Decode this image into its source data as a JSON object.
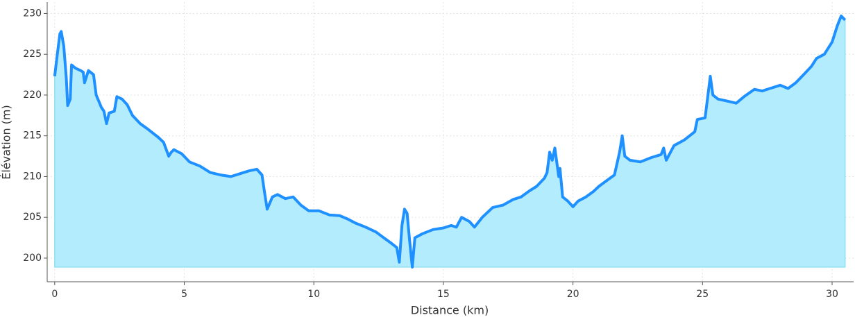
{
  "chart_data": {
    "type": "area",
    "xlabel": "Distance (km)",
    "ylabel": "Élévation (m)",
    "line_color": "#1e90ff",
    "fill_color": "#b3ecfc",
    "grid": true,
    "xlim": [
      -0.29,
      30.83
    ],
    "ylim": [
      197.1,
      231.4
    ],
    "xticks": [
      0,
      5,
      10,
      15,
      20,
      25,
      30
    ],
    "yticks": [
      200,
      205,
      210,
      215,
      220,
      225,
      230
    ],
    "x": [
      0,
      0.1,
      0.2,
      0.25,
      0.35,
      0.45,
      0.5,
      0.6,
      0.65,
      0.8,
      1.0,
      1.1,
      1.15,
      1.3,
      1.5,
      1.6,
      1.8,
      1.9,
      2.0,
      2.1,
      2.3,
      2.4,
      2.6,
      2.8,
      3.0,
      3.3,
      3.6,
      4.0,
      4.2,
      4.4,
      4.5,
      4.6,
      4.9,
      5.2,
      5.6,
      6.0,
      6.4,
      6.8,
      7.2,
      7.5,
      7.8,
      8.0,
      8.1,
      8.2,
      8.4,
      8.6,
      8.9,
      9.2,
      9.5,
      9.8,
      10.2,
      10.6,
      11.0,
      11.3,
      11.6,
      12.0,
      12.4,
      12.7,
      13.0,
      13.2,
      13.3,
      13.4,
      13.5,
      13.6,
      13.7,
      13.8,
      13.9,
      14.2,
      14.6,
      15.0,
      15.3,
      15.5,
      15.7,
      16.0,
      16.2,
      16.5,
      16.9,
      17.3,
      17.7,
      18.0,
      18.3,
      18.6,
      18.9,
      19.0,
      19.1,
      19.2,
      19.3,
      19.45,
      19.5,
      19.6,
      19.8,
      20.0,
      20.2,
      20.5,
      20.8,
      21.0,
      21.3,
      21.6,
      21.8,
      21.9,
      22.0,
      22.2,
      22.6,
      23.0,
      23.4,
      23.5,
      23.6,
      23.9,
      24.3,
      24.7,
      24.8,
      25.1,
      25.3,
      25.4,
      25.6,
      25.9,
      26.3,
      26.6,
      27.0,
      27.3,
      27.6,
      28.0,
      28.3,
      28.6,
      28.9,
      29.2,
      29.4,
      29.7,
      30.0,
      30.2,
      30.35,
      30.5
    ],
    "values": [
      222.3,
      225,
      227.5,
      227.8,
      226,
      222,
      218.7,
      219.5,
      223.7,
      223.3,
      223,
      222.8,
      221.5,
      223,
      222.5,
      220,
      218.5,
      218,
      216.5,
      217.8,
      218,
      219.8,
      219.5,
      218.8,
      217.5,
      216.5,
      215.8,
      214.8,
      214.2,
      212.5,
      213,
      213.3,
      212.8,
      211.8,
      211.3,
      210.5,
      210.2,
      210,
      210.4,
      210.7,
      210.9,
      210.2,
      208,
      206,
      207.5,
      207.8,
      207.3,
      207.5,
      206.5,
      205.8,
      205.8,
      205.3,
      205.2,
      204.8,
      204.3,
      203.8,
      203.2,
      202.5,
      201.8,
      201.3,
      199.5,
      204,
      206,
      205.5,
      202,
      198.9,
      202.5,
      203,
      203.5,
      203.7,
      204,
      203.8,
      205,
      204.5,
      203.8,
      205,
      206.2,
      206.5,
      207.2,
      207.5,
      208.2,
      208.8,
      209.8,
      210.5,
      213,
      212,
      213.5,
      210,
      211,
      207.5,
      207,
      206.3,
      207,
      207.5,
      208.2,
      208.8,
      209.5,
      210.2,
      213,
      215,
      212.5,
      212,
      211.8,
      212.3,
      212.7,
      213.5,
      212,
      213.8,
      214.5,
      215.5,
      217,
      217.2,
      222.3,
      220,
      219.5,
      219.3,
      219,
      219.8,
      220.7,
      220.5,
      220.8,
      221.2,
      220.8,
      221.5,
      222.5,
      223.5,
      224.5,
      225,
      226.5,
      228.5,
      229.7,
      229.2
    ]
  }
}
